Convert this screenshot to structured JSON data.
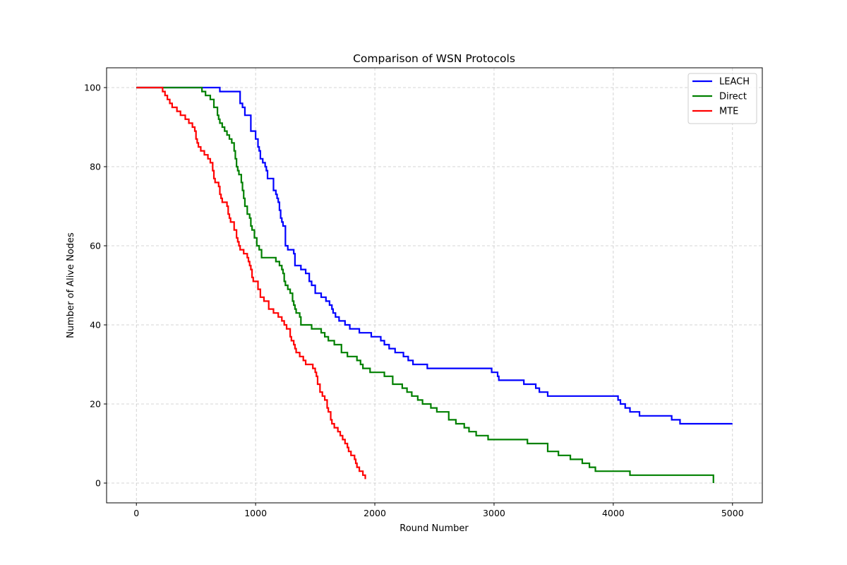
{
  "chart_data": {
    "type": "line",
    "title": "Comparison of WSN Protocols",
    "xlabel": "Round Number",
    "ylabel": "Number of Alive Nodes",
    "xlim": [
      -250,
      5250
    ],
    "ylim": [
      -5,
      105
    ],
    "xticks": [
      0,
      1000,
      2000,
      3000,
      4000,
      5000
    ],
    "yticks": [
      0,
      20,
      40,
      60,
      80,
      100
    ],
    "grid": true,
    "legend_position": "top-right",
    "series": [
      {
        "name": "LEACH",
        "color": "#0000ff",
        "step": true,
        "x": [
          0,
          700,
          870,
          890,
          910,
          960,
          1000,
          1020,
          1030,
          1040,
          1060,
          1080,
          1090,
          1100,
          1150,
          1170,
          1180,
          1190,
          1200,
          1210,
          1220,
          1230,
          1250,
          1270,
          1320,
          1330,
          1380,
          1420,
          1450,
          1470,
          1500,
          1550,
          1590,
          1620,
          1640,
          1650,
          1670,
          1700,
          1750,
          1790,
          1870,
          1970,
          2050,
          2080,
          2120,
          2170,
          2240,
          2280,
          2320,
          2410,
          2440,
          2460,
          2980,
          3000,
          3030,
          3040,
          3250,
          3350,
          3380,
          3450,
          4040,
          4060,
          4100,
          4140,
          4220,
          4490,
          4560,
          5000
        ],
        "y": [
          100,
          99,
          96,
          95,
          93,
          89,
          87,
          85,
          84,
          82,
          81,
          80,
          79,
          77,
          74,
          73,
          72,
          71,
          69,
          67,
          66,
          65,
          60,
          59,
          58,
          55,
          54,
          53,
          51,
          50,
          48,
          47,
          46,
          45,
          44,
          43,
          42,
          41,
          40,
          39,
          38,
          37,
          36,
          35,
          34,
          33,
          32,
          31,
          30,
          30,
          29,
          29,
          28,
          28,
          27,
          26,
          25,
          24,
          23,
          22,
          21,
          20,
          19,
          18,
          17,
          16,
          15,
          15
        ]
      },
      {
        "name": "Direct",
        "color": "#008000",
        "step": true,
        "x": [
          0,
          550,
          580,
          620,
          650,
          680,
          690,
          700,
          720,
          740,
          760,
          780,
          800,
          820,
          830,
          840,
          850,
          860,
          880,
          890,
          900,
          910,
          930,
          950,
          960,
          970,
          990,
          1010,
          1030,
          1050,
          1150,
          1170,
          1200,
          1220,
          1230,
          1240,
          1250,
          1270,
          1290,
          1310,
          1320,
          1330,
          1340,
          1370,
          1380,
          1390,
          1470,
          1550,
          1580,
          1610,
          1660,
          1720,
          1770,
          1850,
          1880,
          1900,
          1960,
          2080,
          2150,
          2230,
          2270,
          2310,
          2360,
          2400,
          2470,
          2520,
          2620,
          2680,
          2750,
          2790,
          2850,
          2950,
          3280,
          3430,
          3450,
          3540,
          3640,
          3740,
          3800,
          3850,
          3900,
          4140,
          4600,
          4830,
          4840
        ],
        "y": [
          100,
          99,
          98,
          97,
          95,
          93,
          92,
          91,
          90,
          89,
          88,
          87,
          86,
          84,
          82,
          80,
          79,
          78,
          76,
          74,
          72,
          70,
          68,
          67,
          65,
          64,
          62,
          60,
          59,
          57,
          57,
          56,
          55,
          54,
          53,
          51,
          50,
          49,
          48,
          46,
          45,
          44,
          43,
          42,
          40,
          40,
          39,
          38,
          37,
          36,
          35,
          33,
          32,
          31,
          30,
          29,
          28,
          27,
          25,
          24,
          23,
          22,
          21,
          20,
          19,
          18,
          16,
          15,
          14,
          13,
          12,
          11,
          10,
          10,
          8,
          7,
          6,
          5,
          4,
          3,
          3,
          2,
          2,
          2,
          0
        ]
      },
      {
        "name": "MTE",
        "color": "#ff0000",
        "step": true,
        "x": [
          0,
          220,
          240,
          260,
          280,
          300,
          340,
          370,
          410,
          440,
          470,
          490,
          500,
          510,
          520,
          540,
          570,
          600,
          620,
          640,
          650,
          660,
          690,
          700,
          710,
          720,
          760,
          770,
          780,
          790,
          820,
          840,
          850,
          860,
          870,
          900,
          930,
          940,
          950,
          960,
          970,
          980,
          1020,
          1040,
          1070,
          1110,
          1150,
          1190,
          1220,
          1240,
          1260,
          1290,
          1300,
          1320,
          1330,
          1340,
          1370,
          1400,
          1420,
          1480,
          1500,
          1510,
          1520,
          1540,
          1560,
          1580,
          1600,
          1610,
          1630,
          1640,
          1660,
          1690,
          1710,
          1730,
          1750,
          1770,
          1780,
          1800,
          1830,
          1840,
          1850,
          1870,
          1900,
          1920
        ],
        "y": [
          100,
          99,
          98,
          97,
          96,
          95,
          94,
          93,
          92,
          91,
          90,
          89,
          87,
          86,
          85,
          84,
          83,
          82,
          81,
          79,
          77,
          76,
          75,
          73,
          72,
          71,
          70,
          68,
          67,
          66,
          64,
          62,
          61,
          60,
          59,
          58,
          57,
          56,
          55,
          54,
          52,
          51,
          49,
          47,
          46,
          44,
          43,
          42,
          41,
          40,
          39,
          37,
          36,
          35,
          34,
          33,
          32,
          31,
          30,
          29,
          28,
          27,
          25,
          23,
          22,
          21,
          19,
          18,
          16,
          15,
          14,
          13,
          12,
          11,
          10,
          9,
          8,
          7,
          6,
          5,
          4,
          3,
          2,
          1
        ]
      }
    ]
  }
}
